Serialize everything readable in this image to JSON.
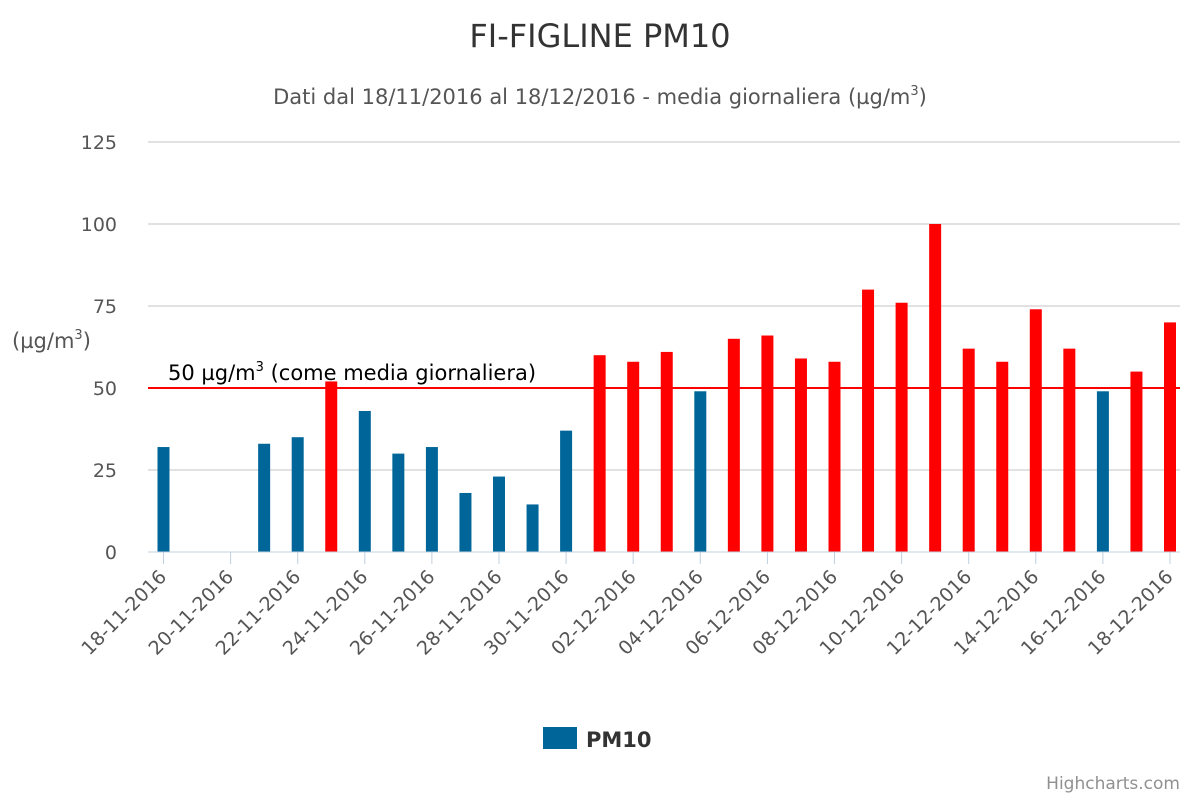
{
  "chart_data": {
    "type": "bar",
    "title": "FI-FIGLINE PM10",
    "subtitle": "Dati dal 18/11/2016 al 18/12/2016 - media giornaliera (µg/m",
    "subtitle_sup": "3",
    "subtitle_end": ")",
    "ylabel": "(µg/m",
    "ylabel_sup": "3",
    "ylabel_end": ")",
    "ylim": [
      0,
      125
    ],
    "yticks": [
      0,
      25,
      50,
      75,
      100,
      125
    ],
    "grid": true,
    "categories": [
      "18-11-2016",
      "19-11-2016",
      "20-11-2016",
      "21-11-2016",
      "22-11-2016",
      "23-11-2016",
      "24-11-2016",
      "25-11-2016",
      "26-11-2016",
      "27-11-2016",
      "28-11-2016",
      "29-11-2016",
      "30-11-2016",
      "01-12-2016",
      "02-12-2016",
      "03-12-2016",
      "04-12-2016",
      "05-12-2016",
      "06-12-2016",
      "07-12-2016",
      "08-12-2016",
      "09-12-2016",
      "10-12-2016",
      "11-12-2016",
      "12-12-2016",
      "13-12-2016",
      "14-12-2016",
      "15-12-2016",
      "16-12-2016",
      "17-12-2016",
      "18-12-2016"
    ],
    "xtick_labels": [
      "18-11-2016",
      "20-11-2016",
      "22-11-2016",
      "24-11-2016",
      "26-11-2016",
      "28-11-2016",
      "30-11-2016",
      "02-12-2016",
      "04-12-2016",
      "06-12-2016",
      "08-12-2016",
      "10-12-2016",
      "12-12-2016",
      "14-12-2016",
      "16-12-2016",
      "18-12-2016"
    ],
    "series": [
      {
        "name": "PM10",
        "values": [
          32,
          null,
          null,
          33,
          35,
          52,
          43,
          30,
          32,
          18,
          23,
          14.5,
          37,
          60,
          58,
          61,
          49,
          65,
          66,
          59,
          58,
          80,
          76,
          100,
          62,
          58,
          74,
          62,
          49,
          55,
          70
        ]
      }
    ],
    "threshold": {
      "value": 50,
      "label": "50 µg/m",
      "label_sup": "3",
      "label_end": " (come media giornaliera)"
    },
    "legend_placement": "bottom-center"
  },
  "colors": {
    "below_threshold": "#006699",
    "above_threshold": "#ff0000",
    "threshold_line": "#ff0000",
    "grid": "#d8d8d8",
    "axis": "#c0d0e0"
  },
  "credits": "Highcharts.com"
}
